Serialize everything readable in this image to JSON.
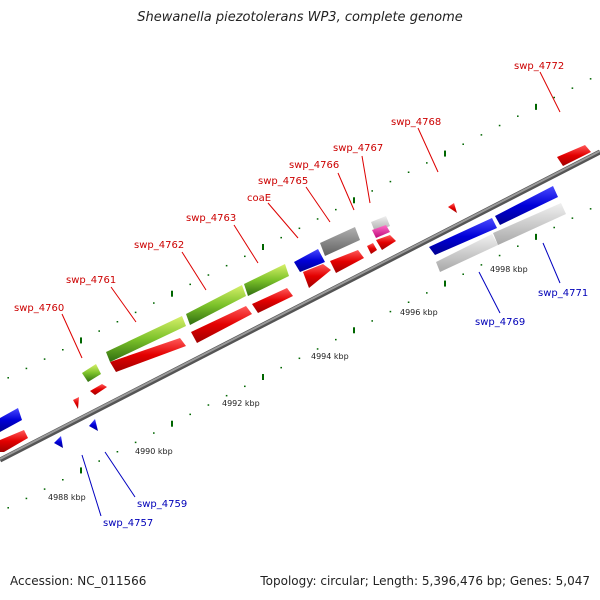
{
  "title": "Shewanella piezotolerans WP3, complete genome",
  "footer": {
    "accession": "Accession: NC_011566",
    "summary": "Topology: circular; Length: 5,396,476 bp; Genes: 5,047"
  },
  "colors": {
    "forward_gene": "#e30000",
    "reverse_gene": "#0000d8",
    "forward_label": "#cc0000",
    "reverse_label": "#0000b8",
    "backbone": "#7f7f7f",
    "tick": "#006600",
    "pathway_green": "#5aa51a",
    "gray_gene": "#8a8a8a",
    "light_gray_gene": "#c8c8c8",
    "magenta_gene": "#e0189a"
  },
  "scale_labels": [
    "4988 kbp",
    "4990 kbp",
    "4992 kbp",
    "4994 kbp",
    "4996 kbp",
    "4998 kbp"
  ],
  "forward_genes": [
    {
      "label": "swp_4760"
    },
    {
      "label": "swp_4761"
    },
    {
      "label": "swp_4762"
    },
    {
      "label": "swp_4763"
    },
    {
      "label": "coaE"
    },
    {
      "label": "swp_4765"
    },
    {
      "label": "swp_4766"
    },
    {
      "label": "swp_4767"
    },
    {
      "label": "swp_4768"
    },
    {
      "label": "swp_4772"
    }
  ],
  "reverse_genes": [
    {
      "label": "swp_4757"
    },
    {
      "label": "swp_4759"
    },
    {
      "label": "swp_4769"
    },
    {
      "label": "swp_4771"
    }
  ]
}
